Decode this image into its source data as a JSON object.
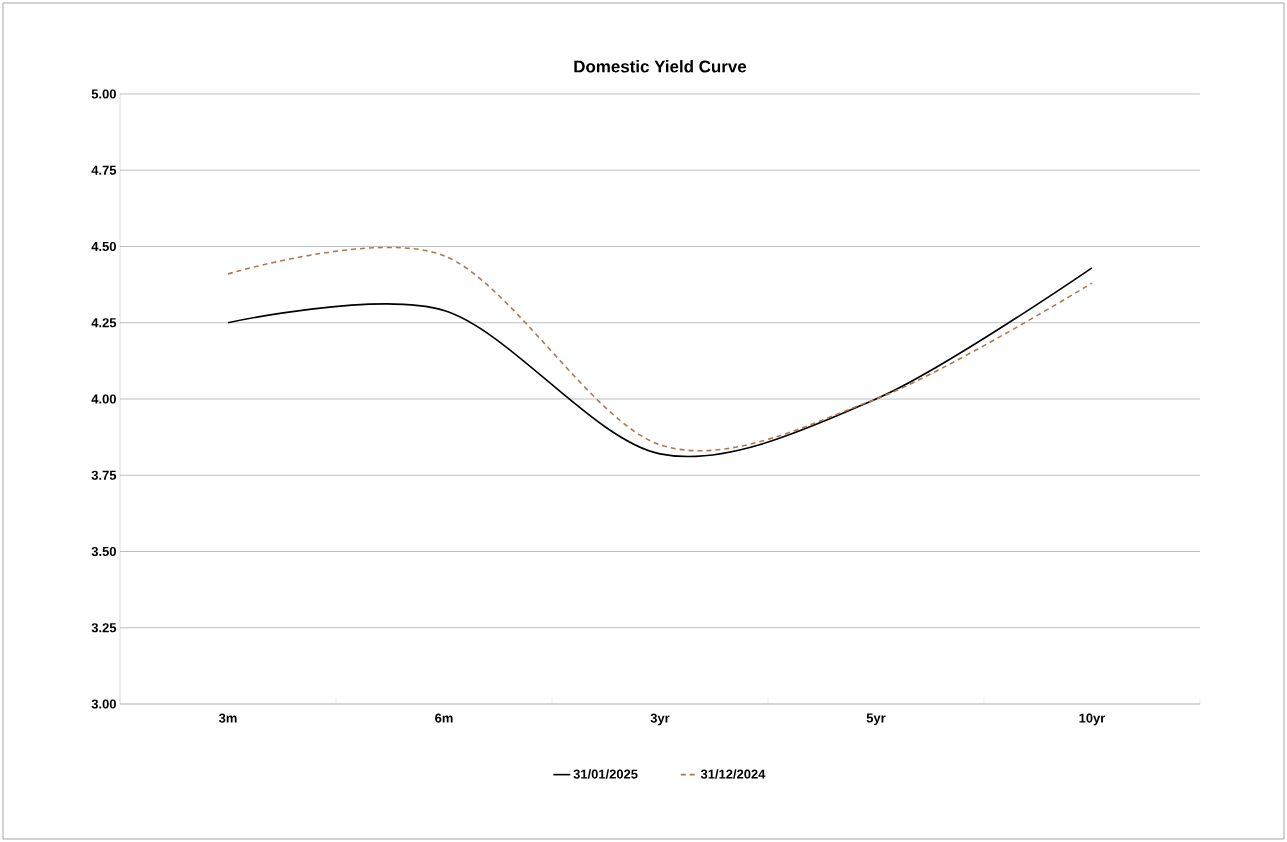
{
  "chart_data": {
    "type": "line",
    "title": "Domestic Yield Curve",
    "categories": [
      "3m",
      "6m",
      "3yr",
      "5yr",
      "10yr"
    ],
    "series": [
      {
        "name": "31/01/2025",
        "color": "#000000",
        "line_style": "solid",
        "values": [
          4.25,
          4.29,
          3.82,
          4.0,
          4.43
        ]
      },
      {
        "name": "31/12/2024",
        "color": "#b07850",
        "line_style": "dashed",
        "values": [
          4.41,
          4.47,
          3.85,
          4.0,
          4.38
        ]
      }
    ],
    "ylim": [
      3.0,
      5.0
    ],
    "yticks": [
      {
        "value": 3.0,
        "label": "3.00"
      },
      {
        "value": 3.25,
        "label": "3.25"
      },
      {
        "value": 3.5,
        "label": "3.50"
      },
      {
        "value": 3.75,
        "label": "3.75"
      },
      {
        "value": 4.0,
        "label": "4.00"
      },
      {
        "value": 4.25,
        "label": "4.25"
      },
      {
        "value": 4.5,
        "label": "4.50"
      },
      {
        "value": 4.75,
        "label": "4.75"
      },
      {
        "value": 5.0,
        "label": "5.00"
      }
    ],
    "grid": "y",
    "legend": "bottom",
    "marker": "none"
  }
}
